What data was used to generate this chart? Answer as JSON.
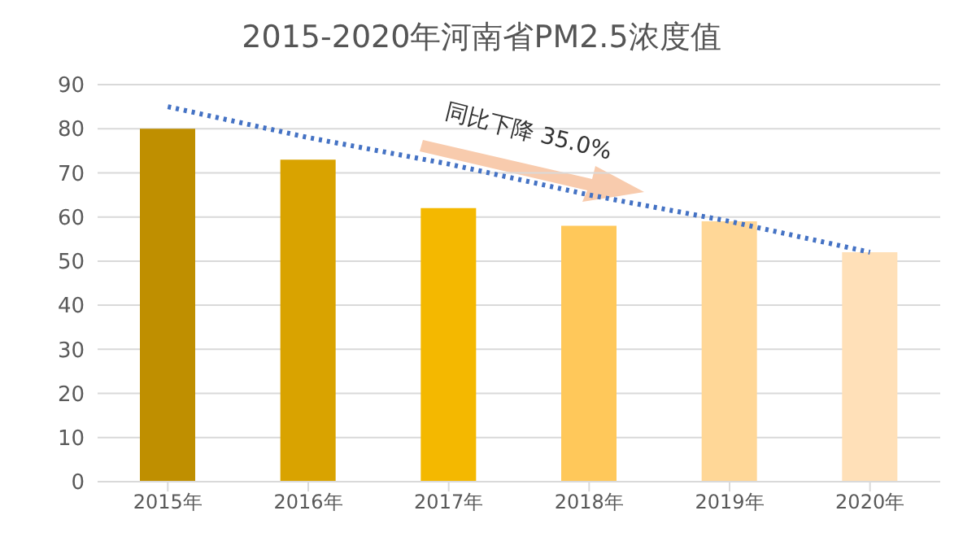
{
  "chart_data": {
    "type": "bar",
    "title": "2015-2020年河南省PM2.5浓度值",
    "categories": [
      "2015年",
      "2016年",
      "2017年",
      "2018年",
      "2019年",
      "2020年"
    ],
    "series": [
      {
        "colors": [
          "#bf8f00",
          "#d9a300",
          "#f4b800",
          "#ffc85a",
          "#ffd797",
          "#ffe0b8"
        ],
        "values": [
          80,
          73,
          62,
          58,
          59,
          52
        ]
      },
      {
        "type": "line",
        "color": "#4472c4",
        "line_style": "dotted",
        "marker": "none",
        "x": [
          "2015年",
          "2016年",
          "2017年",
          "2018年",
          "2019年",
          "2020年"
        ],
        "values": [
          85,
          78,
          72,
          65,
          59,
          52
        ]
      }
    ],
    "ylim": [
      0,
      90
    ],
    "yticks": [
      0,
      10,
      20,
      30,
      40,
      50,
      60,
      70,
      80,
      90
    ],
    "grid": "y",
    "legend": false,
    "annotations": [
      "同比下降 35.0%"
    ]
  }
}
